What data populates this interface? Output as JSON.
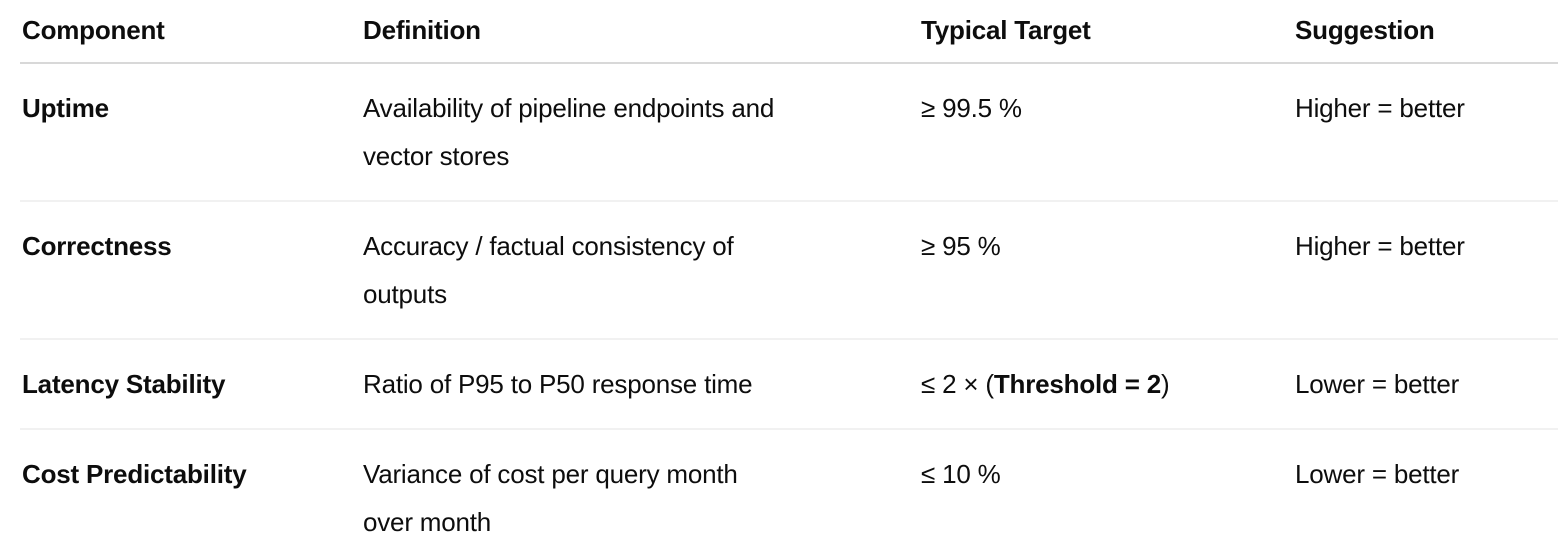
{
  "table": {
    "headers": [
      "Component",
      "Definition",
      "Typical Target",
      "Suggestion"
    ],
    "rows": [
      {
        "component": "Uptime",
        "definition_lines": [
          "Availability of pipeline endpoints and",
          "vector stores"
        ],
        "target": {
          "pre": "≥ 99.5 %",
          "bold": "",
          "post": ""
        },
        "suggestion": "Higher = better"
      },
      {
        "component": "Correctness",
        "definition_lines": [
          "Accuracy / factual consistency of",
          "outputs"
        ],
        "target": {
          "pre": "≥ 95 %",
          "bold": "",
          "post": ""
        },
        "suggestion": "Higher = better"
      },
      {
        "component": "Latency Stability",
        "definition_lines": [
          "Ratio of P95 to P50 response time"
        ],
        "target": {
          "pre": "≤ 2 × (",
          "bold": "Threshold = 2",
          "post": ")"
        },
        "suggestion": "Lower = better"
      },
      {
        "component": "Cost Predictability",
        "definition_lines": [
          "Variance of cost per query month",
          "over month"
        ],
        "target": {
          "pre": "≤ 10 %",
          "bold": "",
          "post": ""
        },
        "suggestion": "Lower = better"
      }
    ]
  }
}
